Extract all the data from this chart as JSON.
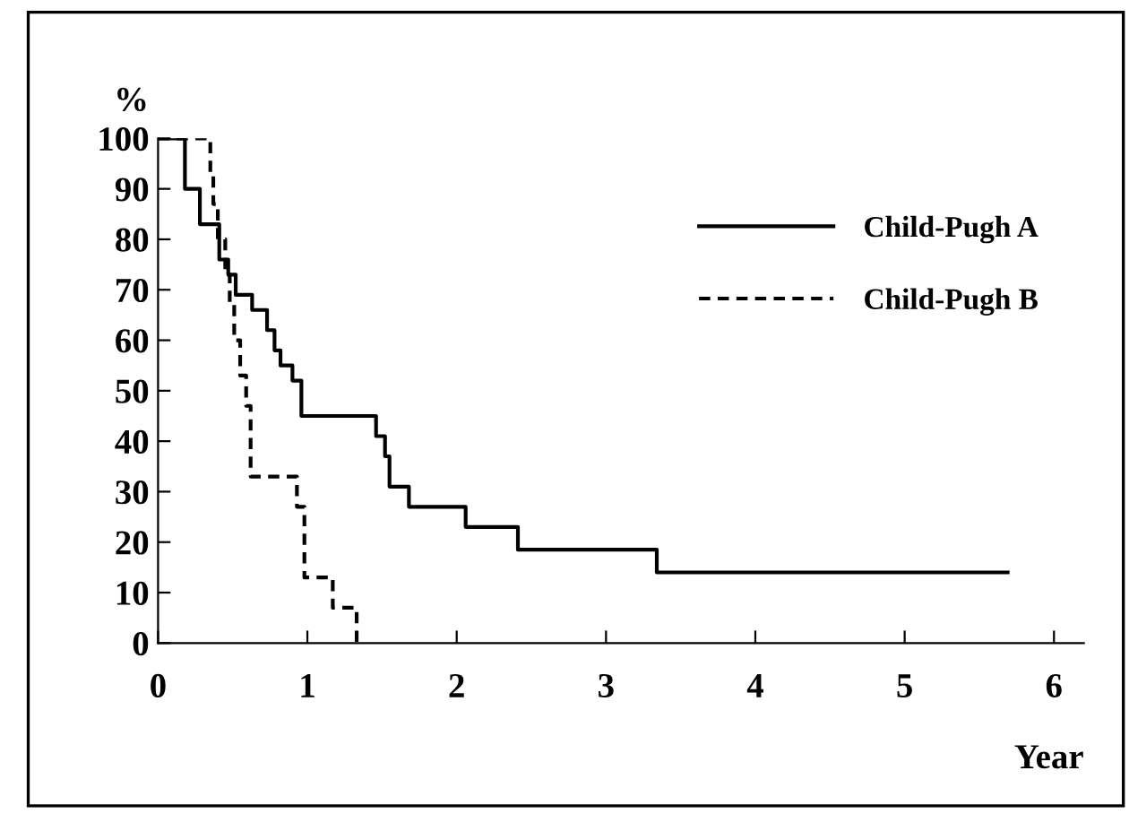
{
  "chart_data": {
    "type": "step",
    "xlabel": "Year",
    "ylabel": "%",
    "series": [
      {
        "name": "Child-Pugh A",
        "color": "#000000",
        "line_style": "solid",
        "x": [
          0,
          0.18,
          0.28,
          0.41,
          0.47,
          0.52,
          0.63,
          0.73,
          0.78,
          0.82,
          0.9,
          0.96,
          1.46,
          1.52,
          1.55,
          1.68,
          2.06,
          2.41,
          3.34,
          5.69
        ],
        "values": [
          100,
          90,
          83,
          76,
          73,
          69,
          66,
          62,
          58,
          55,
          52,
          45,
          41,
          37,
          31,
          27,
          23,
          18.5,
          14,
          14
        ]
      },
      {
        "name": "Child-Pugh B",
        "color": "#000000",
        "line_style": "dashed",
        "x": [
          0,
          0.35,
          0.37,
          0.4,
          0.45,
          0.48,
          0.51,
          0.55,
          0.59,
          0.62,
          0.93,
          0.98,
          1.17,
          1.33
        ],
        "values": [
          100,
          93,
          87,
          80,
          73,
          67,
          60,
          53,
          47,
          33,
          27,
          13,
          7,
          0
        ]
      }
    ],
    "xlim": [
      0,
      6.2
    ],
    "ylim": [
      0,
      100
    ],
    "xticks": [
      0,
      1,
      2,
      3,
      4,
      5,
      6
    ],
    "yticks": [
      0,
      10,
      20,
      30,
      40,
      50,
      60,
      70,
      80,
      90,
      100
    ],
    "grid": false,
    "legend": "top right"
  }
}
